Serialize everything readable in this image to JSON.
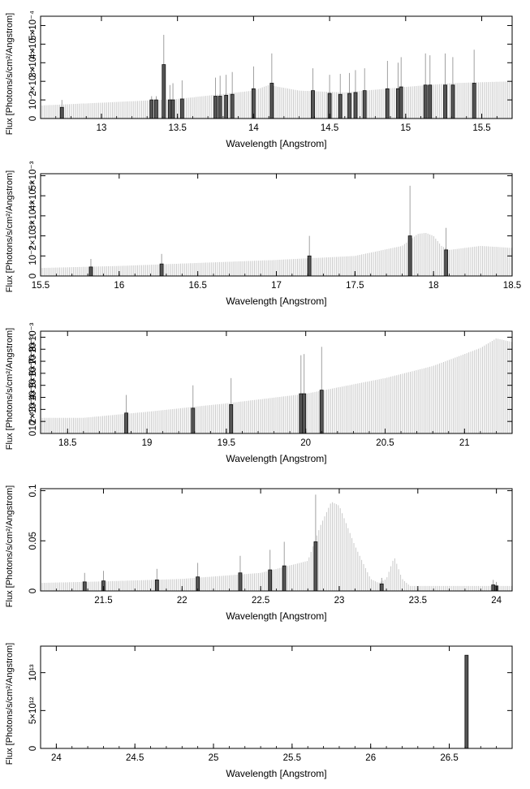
{
  "colors": {
    "background": "#ffffff",
    "axis": "#000000",
    "model_hatch": "#c8c8c8",
    "data_bar": "#111111",
    "data_bar_light": "#555555",
    "error_bar": "#888888"
  },
  "chart_data": [
    {
      "type": "bar",
      "title": "",
      "xlabel": "Wavelength [Angstrom]",
      "ylabel": "Flux [Photons/s/cm²/Angstrom]",
      "xlim": [
        12.6,
        15.7
      ],
      "ylim": [
        0,
        0.00055
      ],
      "grid": false,
      "x_ticks": [
        13,
        13.5,
        14,
        14.5,
        15,
        15.5
      ],
      "x_tick_labels": [
        "13",
        "13.5",
        "14",
        "14.5",
        "15",
        "15.5"
      ],
      "y_ticks": [
        0,
        0.0001,
        0.0002,
        0.0003,
        0.0004,
        0.0005
      ],
      "y_tick_labels": [
        "0",
        "10⁻⁴",
        "2×10⁻⁴",
        "3×10⁻⁴",
        "4×10⁻⁴",
        "5×10⁻⁴"
      ],
      "model": {
        "x": [
          12.6,
          13.0,
          13.5,
          14.0,
          14.1,
          14.3,
          14.6,
          15.0,
          15.3,
          15.7
        ],
        "y": [
          7e-05,
          8.5e-05,
          0.000105,
          0.00015,
          0.00018,
          0.00015,
          0.00014,
          0.00017,
          0.00019,
          0.0002
        ]
      },
      "bars": [
        {
          "x": 12.74,
          "y": 6e-05,
          "err": 4e-05
        },
        {
          "x": 13.33,
          "y": 0.0001,
          "err": 2e-05
        },
        {
          "x": 13.36,
          "y": 0.0001,
          "err": 2e-05
        },
        {
          "x": 13.41,
          "y": 0.00029,
          "err": 0.00016
        },
        {
          "x": 13.45,
          "y": 0.0001,
          "err": 8e-05
        },
        {
          "x": 13.47,
          "y": 0.0001,
          "err": 9e-05
        },
        {
          "x": 13.53,
          "y": 0.000105,
          "err": 0.0001
        },
        {
          "x": 13.75,
          "y": 0.00012,
          "err": 0.0001
        },
        {
          "x": 13.78,
          "y": 0.00012,
          "err": 0.00011
        },
        {
          "x": 13.82,
          "y": 0.000125,
          "err": 0.00011
        },
        {
          "x": 13.86,
          "y": 0.00013,
          "err": 0.00012
        },
        {
          "x": 14.0,
          "y": 0.00016,
          "err": 0.00012
        },
        {
          "x": 14.12,
          "y": 0.00019,
          "err": 0.00016
        },
        {
          "x": 14.39,
          "y": 0.00015,
          "err": 0.00012
        },
        {
          "x": 14.5,
          "y": 0.000135,
          "err": 0.0001
        },
        {
          "x": 14.57,
          "y": 0.00013,
          "err": 0.00011
        },
        {
          "x": 14.63,
          "y": 0.000135,
          "err": 0.00011
        },
        {
          "x": 14.67,
          "y": 0.00014,
          "err": 0.00012
        },
        {
          "x": 14.73,
          "y": 0.00015,
          "err": 0.00012
        },
        {
          "x": 14.88,
          "y": 0.00016,
          "err": 0.00015
        },
        {
          "x": 14.95,
          "y": 0.00016,
          "err": 0.00014
        },
        {
          "x": 14.97,
          "y": 0.00017,
          "err": 0.00016
        },
        {
          "x": 15.13,
          "y": 0.00018,
          "err": 0.00017
        },
        {
          "x": 15.16,
          "y": 0.00018,
          "err": 0.00016
        },
        {
          "x": 15.26,
          "y": 0.00018,
          "err": 0.00017
        },
        {
          "x": 15.31,
          "y": 0.00018,
          "err": 0.00015
        },
        {
          "x": 15.45,
          "y": 0.00019,
          "err": 0.00018
        }
      ]
    },
    {
      "type": "bar",
      "title": "",
      "xlabel": "Wavelength [Angstrom]",
      "ylabel": "Flux [Photons/s/cm²/Angstrom]",
      "xlim": [
        15.5,
        18.5
      ],
      "ylim": [
        0,
        0.0051
      ],
      "grid": false,
      "x_ticks": [
        15.5,
        16,
        16.5,
        17,
        17.5,
        18,
        18.5
      ],
      "x_tick_labels": [
        "15.5",
        "16",
        "16.5",
        "17",
        "17.5",
        "18",
        "18.5"
      ],
      "y_ticks": [
        0,
        0.001,
        0.002,
        0.003,
        0.004,
        0.005
      ],
      "y_tick_labels": [
        "0",
        "10⁻³",
        "2×10⁻³",
        "3×10⁻³",
        "4×10⁻³",
        "5×10⁻³"
      ],
      "model": {
        "x": [
          15.5,
          16.0,
          16.5,
          17.0,
          17.5,
          17.8,
          17.9,
          17.95,
          18.0,
          18.05,
          18.1,
          18.3,
          18.5
        ],
        "y": [
          0.0004,
          0.0005,
          0.00065,
          0.0008,
          0.001,
          0.0015,
          0.0021,
          0.00215,
          0.002,
          0.0015,
          0.0013,
          0.0015,
          0.0014
        ]
      },
      "bars": [
        {
          "x": 15.82,
          "y": 0.00045,
          "err": 0.0004
        },
        {
          "x": 16.27,
          "y": 0.0006,
          "err": 0.0005
        },
        {
          "x": 17.21,
          "y": 0.001,
          "err": 0.001
        },
        {
          "x": 17.85,
          "y": 0.002,
          "err": 0.0025
        },
        {
          "x": 18.08,
          "y": 0.0013,
          "err": 0.0011
        }
      ]
    },
    {
      "type": "bar",
      "title": "",
      "xlabel": "Wavelength [Angstrom]",
      "ylabel": "Flux [Photons/s/cm²/Angstrom]",
      "xlim": [
        18.33,
        21.3
      ],
      "ylim": [
        0,
        0.0085
      ],
      "grid": false,
      "x_ticks": [
        18.5,
        19,
        19.5,
        20,
        20.5,
        21
      ],
      "x_tick_labels": [
        "18.5",
        "19",
        "19.5",
        "20",
        "20.5",
        "21"
      ],
      "y_ticks": [
        0,
        0.001,
        0.002,
        0.003,
        0.004,
        0.005,
        0.006,
        0.007,
        0.008
      ],
      "y_tick_labels": [
        "0",
        "10⁻³",
        "2×10⁻³",
        "3×10⁻³",
        "4×10⁻³",
        "5×10⁻³",
        "6×10⁻³",
        "7×10⁻³",
        "8×10⁻³"
      ],
      "model": {
        "x": [
          18.33,
          18.6,
          19.0,
          19.5,
          20.0,
          20.5,
          20.8,
          21.0,
          21.1,
          21.2,
          21.3
        ],
        "y": [
          0.0013,
          0.0013,
          0.0018,
          0.0025,
          0.0033,
          0.0046,
          0.0056,
          0.0066,
          0.0071,
          0.0079,
          0.0076
        ]
      },
      "bars": [
        {
          "x": 18.87,
          "y": 0.0017,
          "err": 0.0015
        },
        {
          "x": 19.29,
          "y": 0.0021,
          "err": 0.0019
        },
        {
          "x": 19.53,
          "y": 0.0024,
          "err": 0.0022
        },
        {
          "x": 19.97,
          "y": 0.0033,
          "err": 0.0032
        },
        {
          "x": 19.99,
          "y": 0.0033,
          "err": 0.0033
        },
        {
          "x": 20.1,
          "y": 0.0036,
          "err": 0.0036
        }
      ]
    },
    {
      "type": "bar",
      "title": "",
      "xlabel": "Wavelength [Angstrom]",
      "ylabel": "Flux [Photons/s/cm²/Angstrom]",
      "xlim": [
        21.1,
        24.1
      ],
      "ylim": [
        0,
        0.102
      ],
      "grid": false,
      "x_ticks": [
        21.5,
        22,
        22.5,
        23,
        23.5,
        24
      ],
      "x_tick_labels": [
        "21.5",
        "22",
        "22.5",
        "23",
        "23.5",
        "24"
      ],
      "y_ticks": [
        0,
        0.05,
        0.1
      ],
      "y_tick_labels": [
        "0",
        "0.05",
        "0.1"
      ],
      "model": {
        "x": [
          21.1,
          21.5,
          22.0,
          22.5,
          22.8,
          22.88,
          22.95,
          23.0,
          23.1,
          23.2,
          23.25,
          23.3,
          23.35,
          23.4,
          23.45,
          23.6,
          24.1
        ],
        "y": [
          0.008,
          0.0095,
          0.012,
          0.018,
          0.03,
          0.065,
          0.089,
          0.085,
          0.045,
          0.012,
          0.008,
          0.012,
          0.034,
          0.012,
          0.005,
          0.005,
          0.005
        ]
      },
      "bars": [
        {
          "x": 21.38,
          "y": 0.009,
          "err": 0.009
        },
        {
          "x": 21.5,
          "y": 0.01,
          "err": 0.01
        },
        {
          "x": 21.84,
          "y": 0.011,
          "err": 0.011
        },
        {
          "x": 22.1,
          "y": 0.014,
          "err": 0.014
        },
        {
          "x": 22.37,
          "y": 0.018,
          "err": 0.017
        },
        {
          "x": 22.56,
          "y": 0.021,
          "err": 0.02
        },
        {
          "x": 22.65,
          "y": 0.025,
          "err": 0.024
        },
        {
          "x": 22.85,
          "y": 0.049,
          "err": 0.047
        },
        {
          "x": 23.27,
          "y": 0.007,
          "err": 0.006
        },
        {
          "x": 23.98,
          "y": 0.006,
          "err": 0.005
        },
        {
          "x": 24.0,
          "y": 0.005,
          "err": 0.004
        }
      ]
    },
    {
      "type": "bar",
      "title": "",
      "xlabel": "Wavelength [Angstrom]",
      "ylabel": "Flux [Photons/s/cm²/Angstrom]",
      "xlim": [
        23.9,
        26.9
      ],
      "ylim": [
        0,
        13500000000000
      ],
      "grid": false,
      "x_ticks": [
        24,
        24.5,
        25,
        25.5,
        26,
        26.5
      ],
      "x_tick_labels": [
        "24",
        "24.5",
        "25",
        "25.5",
        "26",
        "26.5"
      ],
      "y_ticks": [
        0,
        5000000000000,
        10000000000000
      ],
      "y_tick_labels": [
        "0",
        "5×10¹²",
        "10¹³"
      ],
      "model": {
        "x": [
          23.9,
          26.9
        ],
        "y": [
          0,
          0
        ]
      },
      "bars": [
        {
          "x": 26.61,
          "y": 12300000000000,
          "err": 0
        }
      ]
    }
  ]
}
